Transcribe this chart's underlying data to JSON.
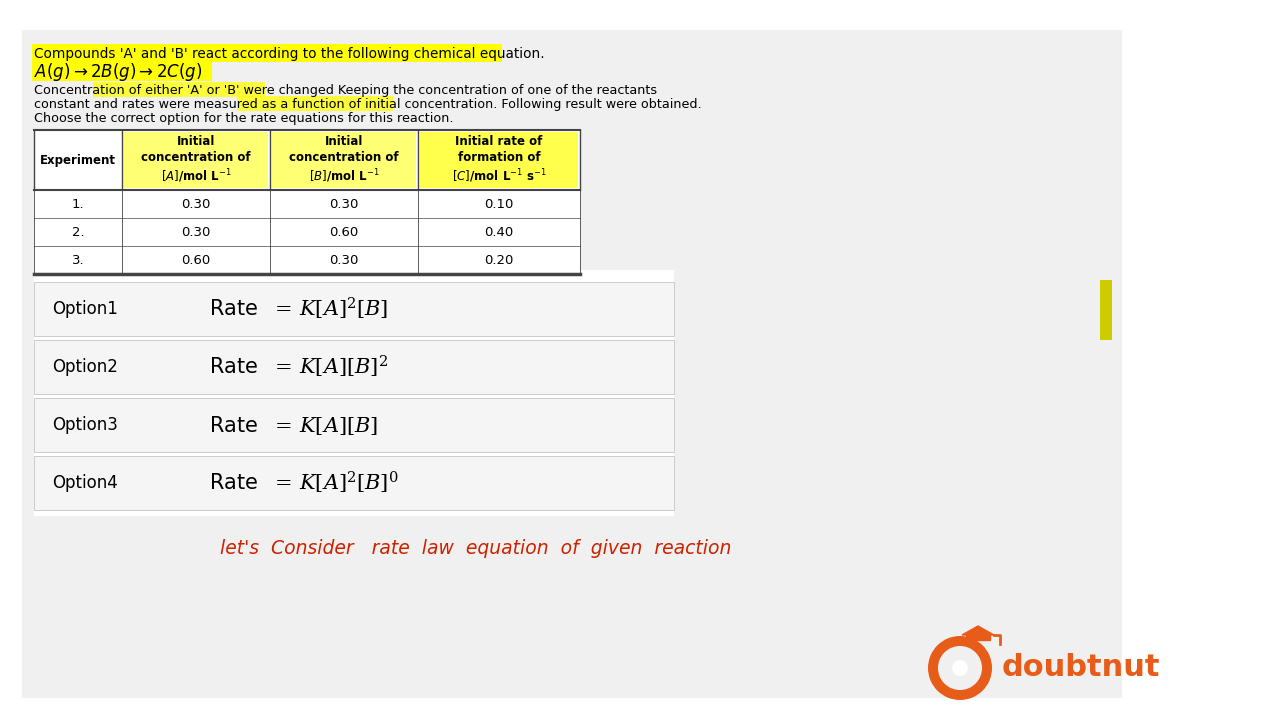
{
  "bg_color": "#ffffff",
  "content_bg": "#f0f0f0",
  "inner_bg": "#ffffff",
  "title_text": "Compounds 'A' and 'B' react according to the following chemical equation.",
  "para_line1": "Concentration of either 'A' or 'B' were changed Keeping the concentration of one of the reactants",
  "para_line2": "constant and rates were measured as a function of initial concentration. Following result were obtained.",
  "para_line3": "Choose the correct option for the rate equations for this reaction.",
  "table_data": [
    [
      "1.",
      "0.30",
      "0.30",
      "0.10"
    ],
    [
      "2.",
      "0.30",
      "0.60",
      "0.40"
    ],
    [
      "3.",
      "0.60",
      "0.30",
      "0.20"
    ]
  ],
  "highlight_yellow": "#ffff00",
  "text_color": "#000000",
  "red_color": "#cc2200",
  "table_border_color": "#444444",
  "option_bg": "#f5f5f5",
  "option_border": "#cccccc",
  "doubtnut_color": "#e85c1a",
  "handwritten": "let's  Consider   rate  law  equation  of  given  reaction"
}
